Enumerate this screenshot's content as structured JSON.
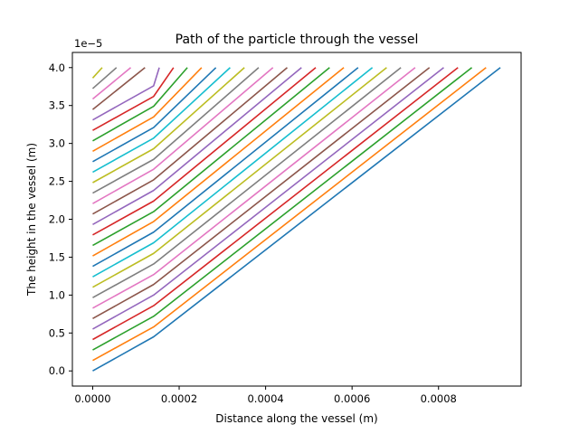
{
  "chart_data": {
    "type": "line",
    "title": "Path of the particle through the vessel",
    "xlabel": "Distance along the vessel (m)",
    "ylabel": "The height in the vessel (m)",
    "y_offset_label": "1e−5",
    "xlim": [
      -4.7e-05,
      0.000991
    ],
    "ylim": [
      -2e-06,
      4.2e-05
    ],
    "xticks": [
      0.0,
      0.0002,
      0.0004,
      0.0006,
      0.0008
    ],
    "xtick_labels": [
      "0.0000",
      "0.0002",
      "0.0004",
      "0.0006",
      "0.0008"
    ],
    "yticks": [
      0.0,
      5e-06,
      1e-05,
      1.5e-05,
      2e-05,
      2.5e-05,
      3e-05,
      3.5e-05,
      4e-05
    ],
    "ytick_labels": [
      "0.0",
      "0.5",
      "1.0",
      "1.5",
      "2.0",
      "2.5",
      "3.0",
      "3.5",
      "4.0"
    ],
    "grid": false,
    "legend": false,
    "colors": [
      "#1f77b4",
      "#ff7f0e",
      "#2ca02c",
      "#d62728",
      "#9467bd",
      "#8c564b",
      "#e377c2",
      "#7f7f7f",
      "#bcbd22",
      "#17becf"
    ],
    "series": [
      {
        "x": [
          0.0,
          0.000141,
          0.000943
        ],
        "y": [
          0.0,
          4.5e-06,
          4e-05
        ]
      },
      {
        "x": [
          0.0,
          0.000141,
          0.00091
        ],
        "y": [
          1.38e-06,
          5.8e-06,
          4e-05
        ]
      },
      {
        "x": [
          0.0,
          0.000141,
          0.000877
        ],
        "y": [
          2.76e-06,
          7.2e-06,
          4e-05
        ]
      },
      {
        "x": [
          0.0,
          0.000141,
          0.000845
        ],
        "y": [
          4.14e-06,
          8.6e-06,
          4e-05
        ]
      },
      {
        "x": [
          0.0,
          0.000141,
          0.000812
        ],
        "y": [
          5.52e-06,
          1e-05,
          4e-05
        ]
      },
      {
        "x": [
          0.0,
          0.000141,
          0.000779
        ],
        "y": [
          6.9e-06,
          1.14e-05,
          4e-05
        ]
      },
      {
        "x": [
          0.0,
          0.000141,
          0.000746
        ],
        "y": [
          8.28e-06,
          1.27e-05,
          4e-05
        ]
      },
      {
        "x": [
          0.0,
          0.000141,
          0.000713
        ],
        "y": [
          9.66e-06,
          1.41e-05,
          4e-05
        ]
      },
      {
        "x": [
          0.0,
          0.000141,
          0.00068
        ],
        "y": [
          1.103e-05,
          1.55e-05,
          4e-05
        ]
      },
      {
        "x": [
          0.0,
          0.000141,
          0.000647
        ],
        "y": [
          1.241e-05,
          1.69e-05,
          4e-05
        ]
      },
      {
        "x": [
          0.0,
          0.000141,
          0.000614
        ],
        "y": [
          1.379e-05,
          1.83e-05,
          4e-05
        ]
      },
      {
        "x": [
          0.0,
          0.000141,
          0.000581
        ],
        "y": [
          1.517e-05,
          1.97e-05,
          4e-05
        ]
      },
      {
        "x": [
          0.0,
          0.000141,
          0.000548
        ],
        "y": [
          1.655e-05,
          2.1e-05,
          4e-05
        ]
      },
      {
        "x": [
          0.0,
          0.000141,
          0.000516
        ],
        "y": [
          1.793e-05,
          2.24e-05,
          4e-05
        ]
      },
      {
        "x": [
          0.0,
          0.000141,
          0.000483
        ],
        "y": [
          1.931e-05,
          2.38e-05,
          4e-05
        ]
      },
      {
        "x": [
          0.0,
          0.000141,
          0.00045
        ],
        "y": [
          2.069e-05,
          2.52e-05,
          4e-05
        ]
      },
      {
        "x": [
          0.0,
          0.000141,
          0.000417
        ],
        "y": [
          2.207e-05,
          2.66e-05,
          4e-05
        ]
      },
      {
        "x": [
          0.0,
          0.000141,
          0.000384
        ],
        "y": [
          2.345e-05,
          2.79e-05,
          4e-05
        ]
      },
      {
        "x": [
          0.0,
          0.000141,
          0.000351
        ],
        "y": [
          2.483e-05,
          2.93e-05,
          4e-05
        ]
      },
      {
        "x": [
          0.0,
          0.000141,
          0.000318
        ],
        "y": [
          2.621e-05,
          3.07e-05,
          4e-05
        ]
      },
      {
        "x": [
          0.0,
          0.000141,
          0.000285
        ],
        "y": [
          2.759e-05,
          3.21e-05,
          4e-05
        ]
      },
      {
        "x": [
          0.0,
          0.000141,
          0.000252
        ],
        "y": [
          2.897e-05,
          3.35e-05,
          4e-05
        ]
      },
      {
        "x": [
          0.0,
          0.000141,
          0.000219
        ],
        "y": [
          3.034e-05,
          3.49e-05,
          4e-05
        ]
      },
      {
        "x": [
          0.0,
          0.000141,
          0.000187
        ],
        "y": [
          3.172e-05,
          3.62e-05,
          4e-05
        ]
      },
      {
        "x": [
          0.0,
          0.000141,
          0.000154
        ],
        "y": [
          3.31e-05,
          3.76e-05,
          4e-05
        ]
      },
      {
        "x": [
          0.0,
          0.000121
        ],
        "y": [
          3.448e-05,
          4e-05
        ]
      },
      {
        "x": [
          0.0,
          8.8e-05
        ],
        "y": [
          3.586e-05,
          4e-05
        ]
      },
      {
        "x": [
          0.0,
          5.5e-05
        ],
        "y": [
          3.724e-05,
          4e-05
        ]
      },
      {
        "x": [
          0.0,
          2.2e-05
        ],
        "y": [
          3.862e-05,
          4e-05
        ]
      }
    ]
  }
}
